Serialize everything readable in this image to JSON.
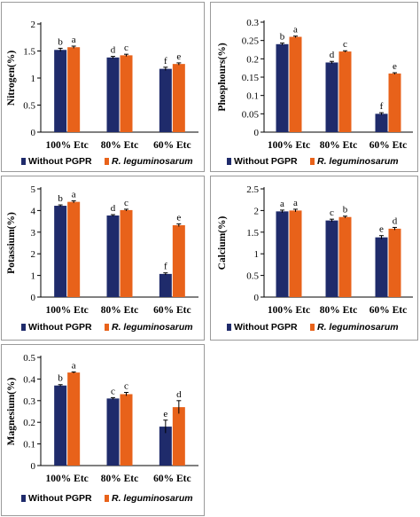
{
  "colors": {
    "without": "#1f2b6b",
    "with": "#e8621a",
    "axis": "#000000"
  },
  "legend": {
    "labels": [
      "Without PGPR",
      "R. leguminosarum"
    ]
  },
  "chart_data": [
    {
      "type": "bar",
      "ylabel": "Nitrogen(%)",
      "ylim": [
        0,
        2
      ],
      "yticks": [
        "0",
        "0.5",
        "1",
        "1.5",
        "2"
      ],
      "tick_values": [
        0,
        0.5,
        1,
        1.5,
        2
      ],
      "categories": [
        "100% Etc",
        "80% Etc",
        "60% Etc"
      ],
      "series": [
        {
          "name": "Without PGPR",
          "values": [
            1.52,
            1.38,
            1.17
          ],
          "errors": [
            0.03,
            0.02,
            0.03
          ],
          "letters": [
            "b",
            "d",
            "f"
          ]
        },
        {
          "name": "R. leguminosarum",
          "values": [
            1.57,
            1.42,
            1.26
          ],
          "errors": [
            0.02,
            0.02,
            0.02
          ],
          "letters": [
            "a",
            "c",
            "e"
          ]
        }
      ]
    },
    {
      "type": "bar",
      "ylabel": "Phosphours(%)",
      "ylim": [
        0,
        0.3
      ],
      "yticks": [
        "0",
        "0.05",
        "0.1",
        "0.15",
        "0.2",
        "0.25",
        "0.3"
      ],
      "tick_values": [
        0,
        0.05,
        0.1,
        0.15,
        0.2,
        0.25,
        0.3
      ],
      "categories": [
        "100% Etc",
        "80% Etc",
        "60% Etc"
      ],
      "series": [
        {
          "name": "Without PGPR",
          "values": [
            0.24,
            0.19,
            0.05
          ],
          "errors": [
            0.003,
            0.003,
            0.003
          ],
          "letters": [
            "b",
            "d",
            "f"
          ]
        },
        {
          "name": "R. leguminosarum",
          "values": [
            0.26,
            0.22,
            0.16
          ],
          "errors": [
            0.002,
            0.002,
            0.002
          ],
          "letters": [
            "a",
            "c",
            "e"
          ]
        }
      ]
    },
    {
      "type": "bar",
      "ylabel": "Potassium(%)",
      "ylim": [
        0,
        5
      ],
      "yticks": [
        "0",
        "1",
        "2",
        "3",
        "4",
        "5"
      ],
      "tick_values": [
        0,
        1,
        2,
        3,
        4,
        5
      ],
      "categories": [
        "100% Etc",
        "80% Etc",
        "60% Etc"
      ],
      "series": [
        {
          "name": "Without PGPR",
          "values": [
            4.22,
            3.77,
            1.07
          ],
          "errors": [
            0.04,
            0.04,
            0.05
          ],
          "letters": [
            "b",
            "d",
            "f"
          ]
        },
        {
          "name": "R. leguminosarum",
          "values": [
            4.4,
            4.02,
            3.32
          ],
          "errors": [
            0.05,
            0.04,
            0.06
          ],
          "letters": [
            "a",
            "c",
            "e"
          ]
        }
      ]
    },
    {
      "type": "bar",
      "ylabel": "Calcium(%)",
      "ylim": [
        0,
        2.5
      ],
      "yticks": [
        "0",
        "0.5",
        "1",
        "1.5",
        "2",
        "2.5"
      ],
      "tick_values": [
        0,
        0.5,
        1,
        1.5,
        2,
        2.5
      ],
      "categories": [
        "100% Etc",
        "80% Etc",
        "60% Etc"
      ],
      "series": [
        {
          "name": "Without PGPR",
          "values": [
            1.98,
            1.77,
            1.38
          ],
          "errors": [
            0.03,
            0.03,
            0.04
          ],
          "letters": [
            "a",
            "c",
            "e"
          ]
        },
        {
          "name": "R. leguminosarum",
          "values": [
            2.0,
            1.85,
            1.58
          ],
          "errors": [
            0.03,
            0.02,
            0.03
          ],
          "letters": [
            "a",
            "b",
            "d"
          ]
        }
      ]
    },
    {
      "type": "bar",
      "ylabel": "Magnesium(%)",
      "ylim": [
        0,
        0.5
      ],
      "yticks": [
        "0",
        "0.1",
        "0.2",
        "0.3",
        "0.4",
        "0.5"
      ],
      "tick_values": [
        0,
        0.1,
        0.2,
        0.3,
        0.4,
        0.5
      ],
      "categories": [
        "100% Etc",
        "80% Etc",
        "60% Etc"
      ],
      "series": [
        {
          "name": "Without PGPR",
          "values": [
            0.37,
            0.31,
            0.18
          ],
          "errors": [
            0.004,
            0.004,
            0.03
          ],
          "letters": [
            "b",
            "c",
            "e"
          ]
        },
        {
          "name": "R. leguminosarum",
          "values": [
            0.43,
            0.33,
            0.27
          ],
          "errors": [
            0.003,
            0.008,
            0.03
          ],
          "letters": [
            "a",
            "c",
            "d"
          ]
        }
      ]
    }
  ]
}
